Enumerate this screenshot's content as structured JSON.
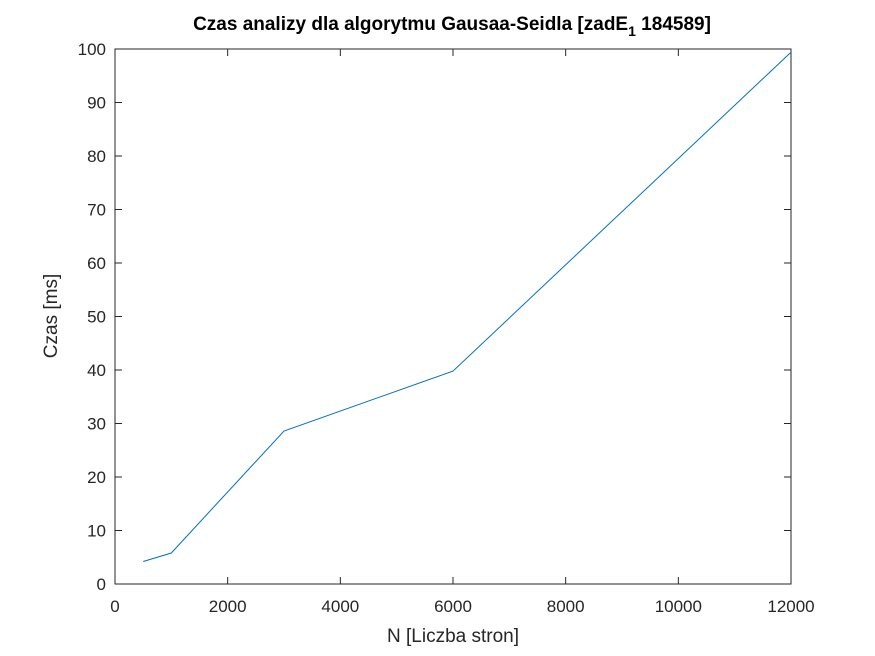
{
  "chart_data": {
    "type": "line",
    "title": {
      "main": "Czas analizy dla algorytmu Gausaa-Seidla [zadE",
      "subscript": "1",
      "suffix": " 184589]"
    },
    "xlabel": "N [Liczba stron]",
    "ylabel": "Czas [ms]",
    "xlim": [
      0,
      12000
    ],
    "ylim": [
      0,
      100
    ],
    "xticks": [
      0,
      2000,
      4000,
      6000,
      8000,
      10000,
      12000
    ],
    "yticks": [
      0,
      10,
      20,
      30,
      40,
      50,
      60,
      70,
      80,
      90,
      100
    ],
    "grid": false,
    "series": [
      {
        "color": "#0072BD",
        "x": [
          500,
          1000,
          3000,
          6000,
          12000
        ],
        "y": [
          4.2,
          5.8,
          28.6,
          39.8,
          99.4
        ]
      }
    ]
  }
}
